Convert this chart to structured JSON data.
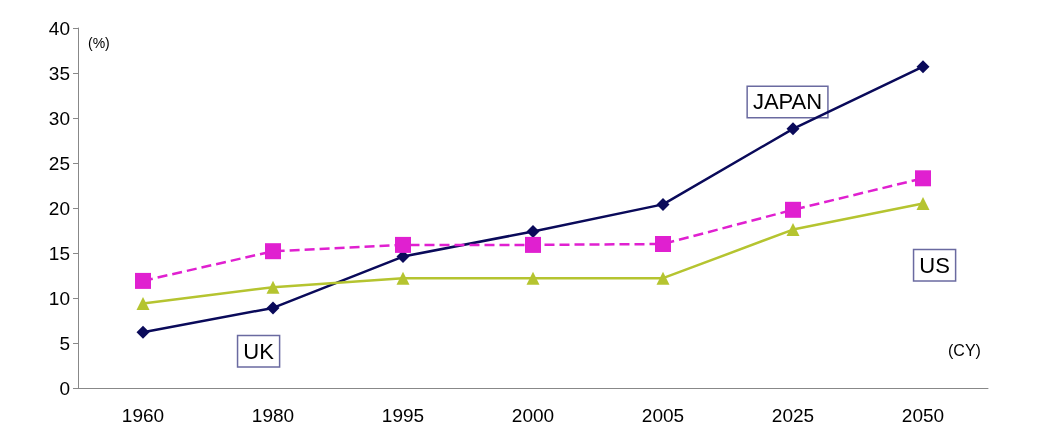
{
  "chart_data": {
    "type": "line",
    "ylabel": "(%)",
    "xlabel": "(CY)",
    "categories": [
      "1960",
      "1980",
      "1995",
      "2000",
      "2005",
      "2025",
      "2050"
    ],
    "series": [
      {
        "color": "#0a0a5a",
        "marker": "diamond",
        "line_style": "solid",
        "values": [
          6.2,
          8.9,
          14.6,
          17.4,
          20.4,
          28.8,
          35.7
        ]
      },
      {
        "color": "#e020d0",
        "marker": "square",
        "line_style": "dashed",
        "values": [
          11.9,
          15.2,
          15.9,
          15.9,
          16.0,
          19.8,
          23.3
        ]
      },
      {
        "color": "#b5c430",
        "marker": "triangle",
        "line_style": "solid",
        "values": [
          9.4,
          11.2,
          12.2,
          12.2,
          12.2,
          17.6,
          20.5
        ]
      }
    ],
    "annotations": [
      "JAPAN",
      "UK",
      "US"
    ],
    "ylim": [
      0,
      40
    ],
    "yticks": [
      0,
      5,
      10,
      15,
      20,
      25,
      30,
      35,
      40
    ],
    "grid": false
  }
}
